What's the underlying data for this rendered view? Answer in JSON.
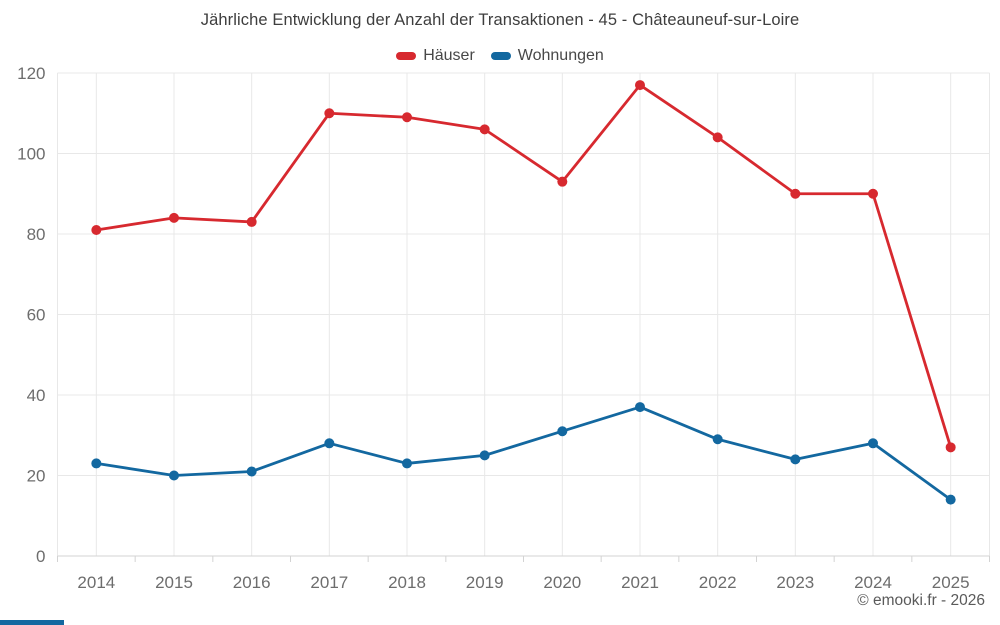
{
  "title": "Jährliche Entwicklung der Anzahl der Transaktionen - 45 - Châteauneuf-sur-Loire",
  "footer": {
    "attribution": "© emooki.fr - 2026"
  },
  "colors": {
    "haeuser": "#d7292f",
    "wohnungen": "#1368a0",
    "grid": "#e8e8e8",
    "axis": "#d3d3d3",
    "brand_bar": "#1368a0"
  },
  "chart_data": {
    "type": "line",
    "title": "Jährliche Entwicklung der Anzahl der Transaktionen - 45 - Châteauneuf-sur-Loire",
    "x": [
      "2014",
      "2015",
      "2016",
      "2017",
      "2018",
      "2019",
      "2020",
      "2021",
      "2022",
      "2023",
      "2024",
      "2025"
    ],
    "series": [
      {
        "name": "Häuser",
        "color": "#d7292f",
        "values": [
          81,
          84,
          83,
          110,
          109,
          106,
          93,
          117,
          104,
          90,
          90,
          27
        ]
      },
      {
        "name": "Wohnungen",
        "color": "#1368a0",
        "values": [
          23,
          20,
          21,
          28,
          23,
          25,
          31,
          37,
          29,
          24,
          28,
          14
        ]
      }
    ],
    "ylim": [
      0,
      120
    ],
    "yticks": [
      0,
      20,
      40,
      60,
      80,
      100,
      120
    ],
    "xlabel": "",
    "ylabel": "",
    "grid": true,
    "legend_position": "top-center"
  }
}
